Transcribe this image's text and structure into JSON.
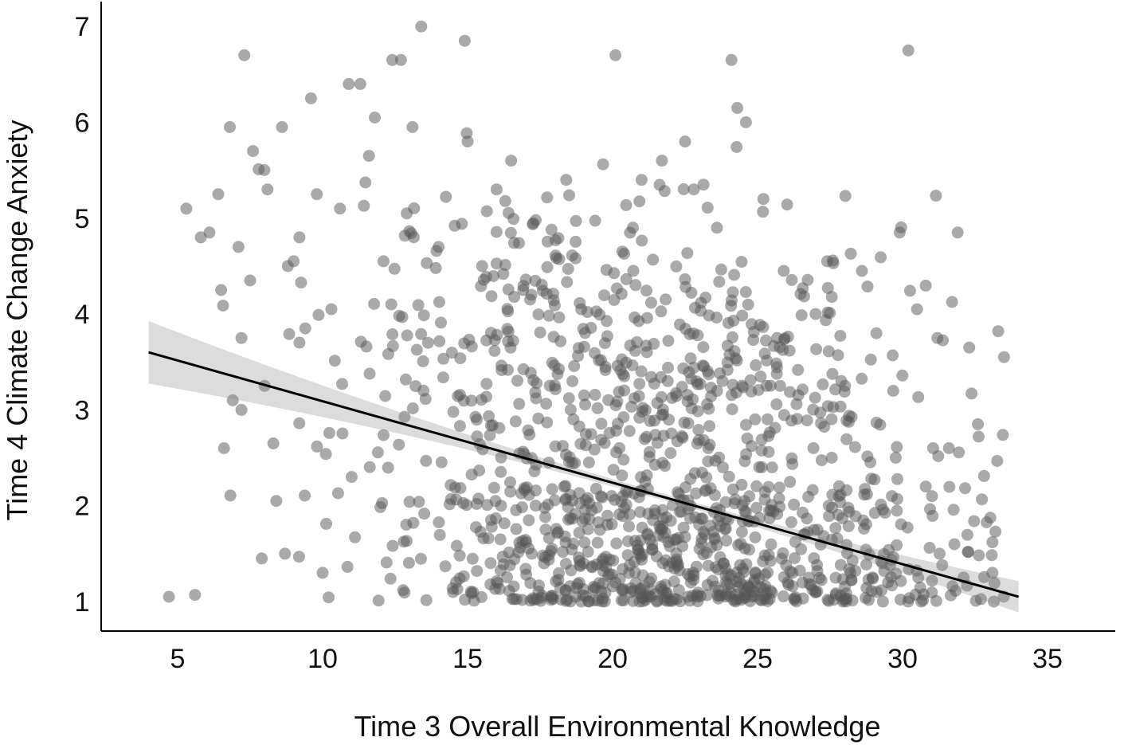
{
  "chart_data": {
    "type": "scatter",
    "title": "",
    "xlabel": "Time 3 Overall Environmental Knowledge",
    "ylabel": "Time 4 Climate Change Anxiety",
    "xlim": [
      2.5,
      38
    ],
    "ylim": [
      0.7,
      7.3
    ],
    "x_ticks": [
      "5",
      "10",
      "15",
      "20",
      "25",
      "30",
      "35"
    ],
    "y_ticks": [
      "1",
      "2",
      "3",
      "4",
      "5",
      "6",
      "7"
    ],
    "grid": false,
    "legend": "none",
    "point_color": "#555555",
    "point_opacity": 0.5,
    "points_sample": [
      [
        4.7,
        1.05
      ],
      [
        5.6,
        1.07
      ],
      [
        5.3,
        5.1
      ],
      [
        5.8,
        4.8
      ],
      [
        6.1,
        4.85
      ],
      [
        6.4,
        5.25
      ],
      [
        6.5,
        4.25
      ],
      [
        6.6,
        2.6
      ],
      [
        6.8,
        5.95
      ],
      [
        6.9,
        3.1
      ],
      [
        7.1,
        4.7
      ],
      [
        7.2,
        3.0
      ],
      [
        7.2,
        3.75
      ],
      [
        7.3,
        6.7
      ],
      [
        7.5,
        4.35
      ],
      [
        7.6,
        5.7
      ],
      [
        7.9,
        1.45
      ],
      [
        8.0,
        3.25
      ],
      [
        8.1,
        5.3
      ],
      [
        8.3,
        2.65
      ],
      [
        8.4,
        2.05
      ],
      [
        8.6,
        5.95
      ],
      [
        8.7,
        1.5
      ],
      [
        8.8,
        4.5
      ],
      [
        9.0,
        4.55
      ],
      [
        9.2,
        4.8
      ],
      [
        9.4,
        3.85
      ],
      [
        9.6,
        6.25
      ],
      [
        9.8,
        5.25
      ],
      [
        10.0,
        1.3
      ],
      [
        10.3,
        4.05
      ],
      [
        10.6,
        5.1
      ],
      [
        10.9,
        6.4
      ],
      [
        11.0,
        2.3
      ],
      [
        11.3,
        6.4
      ],
      [
        11.6,
        5.65
      ],
      [
        11.8,
        6.05
      ],
      [
        12.1,
        4.55
      ],
      [
        12.4,
        6.65
      ],
      [
        12.7,
        6.65
      ],
      [
        12.9,
        5.05
      ],
      [
        13.1,
        5.95
      ],
      [
        13.4,
        7.0
      ],
      [
        14.0,
        4.7
      ],
      [
        14.5,
        1.1
      ],
      [
        14.9,
        6.85
      ],
      [
        15.0,
        5.8
      ],
      [
        15.5,
        4.5
      ],
      [
        16.0,
        5.3
      ],
      [
        16.5,
        5.6
      ],
      [
        17.2,
        4.2
      ],
      [
        17.8,
        2.45
      ],
      [
        18.4,
        5.4
      ],
      [
        19.0,
        1.4
      ],
      [
        19.6,
        2.1
      ],
      [
        20.1,
        6.7
      ],
      [
        20.4,
        3.35
      ],
      [
        20.7,
        4.9
      ],
      [
        21.0,
        5.4
      ],
      [
        21.3,
        1.05
      ],
      [
        21.7,
        5.6
      ],
      [
        21.9,
        3.3
      ],
      [
        22.2,
        1.5
      ],
      [
        22.5,
        5.8
      ],
      [
        22.8,
        5.3
      ],
      [
        23.0,
        1.55
      ],
      [
        23.3,
        2.6
      ],
      [
        23.6,
        4.9
      ],
      [
        23.9,
        1.2
      ],
      [
        24.1,
        6.65
      ],
      [
        24.3,
        6.15
      ],
      [
        24.6,
        6.0
      ],
      [
        24.9,
        1.1
      ],
      [
        25.2,
        5.2
      ],
      [
        25.5,
        2.4
      ],
      [
        25.9,
        4.45
      ],
      [
        26.2,
        1.3
      ],
      [
        26.6,
        1.7
      ],
      [
        27.0,
        4.0
      ],
      [
        27.4,
        4.55
      ],
      [
        27.8,
        2.1
      ],
      [
        28.2,
        1.3
      ],
      [
        28.6,
        4.45
      ],
      [
        29.1,
        3.8
      ],
      [
        29.5,
        1.2
      ],
      [
        29.9,
        4.85
      ],
      [
        30.2,
        6.75
      ],
      [
        30.5,
        4.05
      ],
      [
        30.8,
        2.2
      ],
      [
        31.2,
        3.75
      ],
      [
        31.6,
        2.6
      ],
      [
        31.9,
        4.85
      ],
      [
        32.3,
        3.65
      ],
      [
        32.6,
        2.85
      ],
      [
        33.1,
        1.3
      ],
      [
        33.5,
        3.55
      ]
    ],
    "regression": {
      "label": "",
      "x": [
        4,
        34
      ],
      "y": [
        3.6,
        1.05
      ],
      "confidence_band": true
    }
  }
}
